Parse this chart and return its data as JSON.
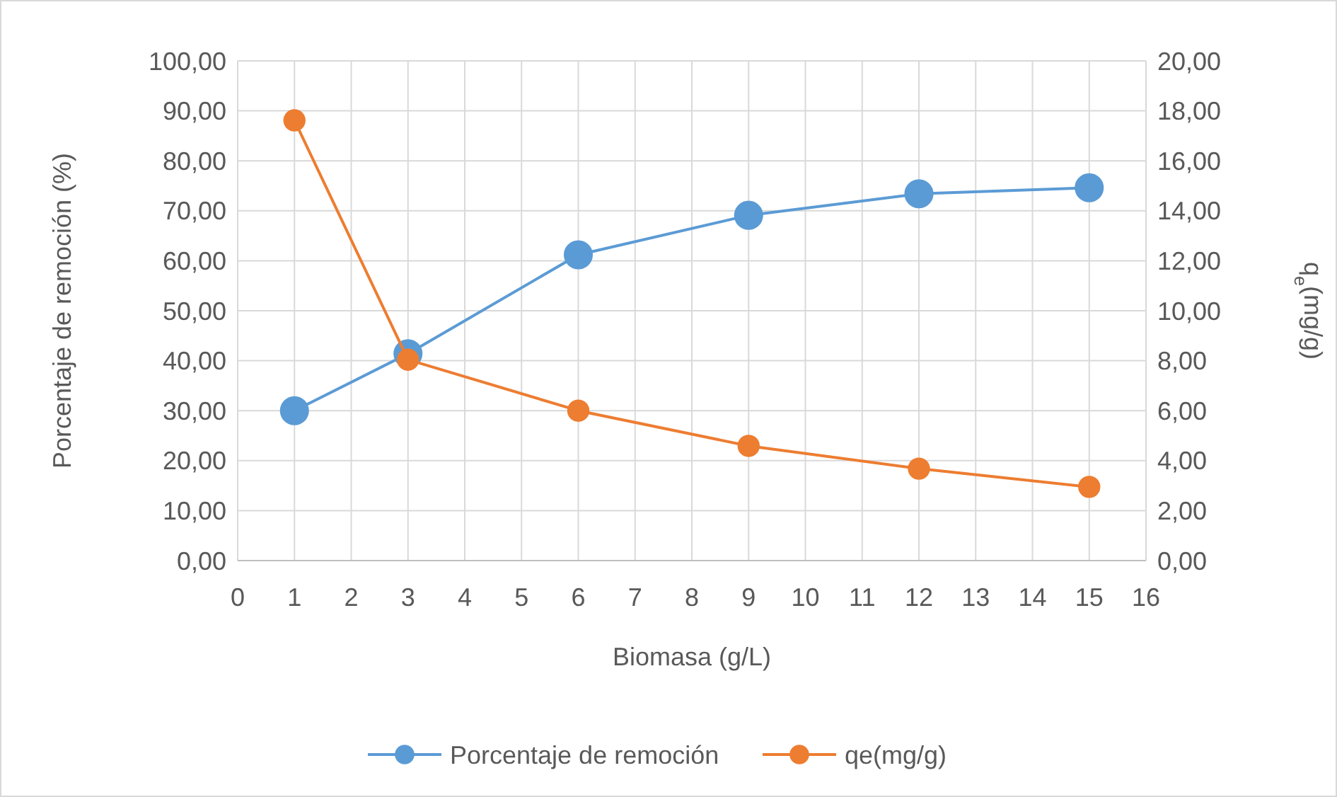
{
  "chart_data": {
    "type": "line",
    "xlabel": "Biomasa (g/L)",
    "ylabel": "Porcentaje de remoción (%)",
    "y2label": "q$_{e}$(mg/g)",
    "x": [
      1,
      3,
      6,
      9,
      12,
      15
    ],
    "xlim": [
      0,
      16
    ],
    "xticks": [
      0,
      1,
      2,
      3,
      4,
      5,
      6,
      7,
      8,
      9,
      10,
      11,
      12,
      13,
      14,
      15,
      16
    ],
    "ylim": [
      0,
      100
    ],
    "yticks": [
      {
        "value": 0,
        "label": "0,00"
      },
      {
        "value": 10,
        "label": "10,00"
      },
      {
        "value": 20,
        "label": "20,00"
      },
      {
        "value": 30,
        "label": "30,00"
      },
      {
        "value": 40,
        "label": "40,00"
      },
      {
        "value": 50,
        "label": "50,00"
      },
      {
        "value": 60,
        "label": "60,00"
      },
      {
        "value": 70,
        "label": "70,00"
      },
      {
        "value": 80,
        "label": "80,00"
      },
      {
        "value": 90,
        "label": "90,00"
      },
      {
        "value": 100,
        "label": "100,00"
      }
    ],
    "y2lim": [
      0,
      20
    ],
    "y2ticks": [
      {
        "value": 0,
        "label": "0,00"
      },
      {
        "value": 2,
        "label": "2,00"
      },
      {
        "value": 4,
        "label": "4,00"
      },
      {
        "value": 6,
        "label": "6,00"
      },
      {
        "value": 8,
        "label": "8,00"
      },
      {
        "value": 10,
        "label": "10,00"
      },
      {
        "value": 12,
        "label": "12,00"
      },
      {
        "value": 14,
        "label": "14,00"
      },
      {
        "value": 16,
        "label": "16,00"
      },
      {
        "value": 18,
        "label": "18,00"
      },
      {
        "value": 20,
        "label": "20,00"
      }
    ],
    "grid": true,
    "legend": "bottom",
    "marker": "circle",
    "line_style": "solid",
    "series": [
      {
        "name": "Porcentaje de remoción",
        "color": "#5b9bd5",
        "values": [
          30.0,
          41.4,
          61.2,
          69.1,
          73.4,
          74.6
        ]
      },
      {
        "name": "qe(mg/g)",
        "color": "#ed7d31",
        "axis": "y2",
        "values": [
          17.62,
          8.04,
          6.0,
          4.59,
          3.68,
          2.95
        ]
      }
    ]
  }
}
